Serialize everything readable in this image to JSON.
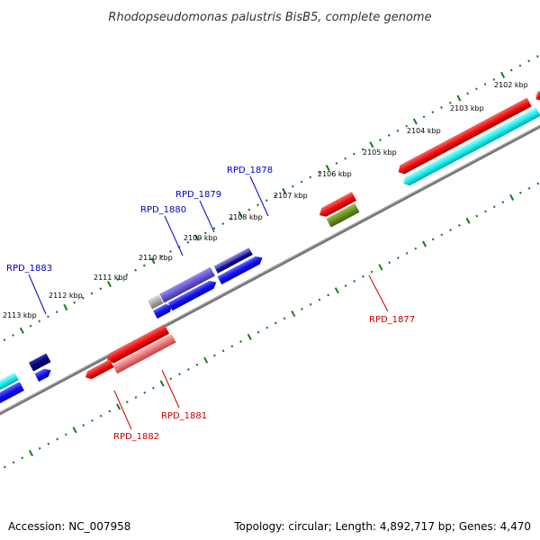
{
  "title": "Rhodopseudomonas palustris BisB5, complete genome",
  "footer": {
    "accession": "Accession: NC_007958",
    "topology": "Topology: circular; Length: 4,892,717 bp; Genes: 4,470"
  },
  "tick_labels": [
    "2102 kbp",
    "2103 kbp",
    "2104 kbp",
    "2105 kbp",
    "2106 kbp",
    "2107 kbp",
    "2108 kbp",
    "2109 kbp",
    "2110 kbp",
    "2111 kbp",
    "2112 kbp",
    "2113 kbp"
  ],
  "gene_labels": {
    "blue": [
      "RPD_1878",
      "RPD_1879",
      "RPD_1880",
      "RPD_1883"
    ],
    "red": [
      "RPD_1877",
      "RPD_1881",
      "RPD_1882"
    ]
  },
  "colors": {
    "backbone": "#777777",
    "tick": "#1a7a1a",
    "blue_label": "#0000cc",
    "red_label": "#cc0000",
    "gene_red": "#ee1111",
    "gene_cyan": "#22eeee",
    "gene_blue": "#1111ee",
    "gene_navy": "#000080",
    "gene_olive": "#6b8e23",
    "gene_pink": "#ee7777",
    "gene_slate": "#6a5acd",
    "gene_gray": "#aaaaaa"
  }
}
